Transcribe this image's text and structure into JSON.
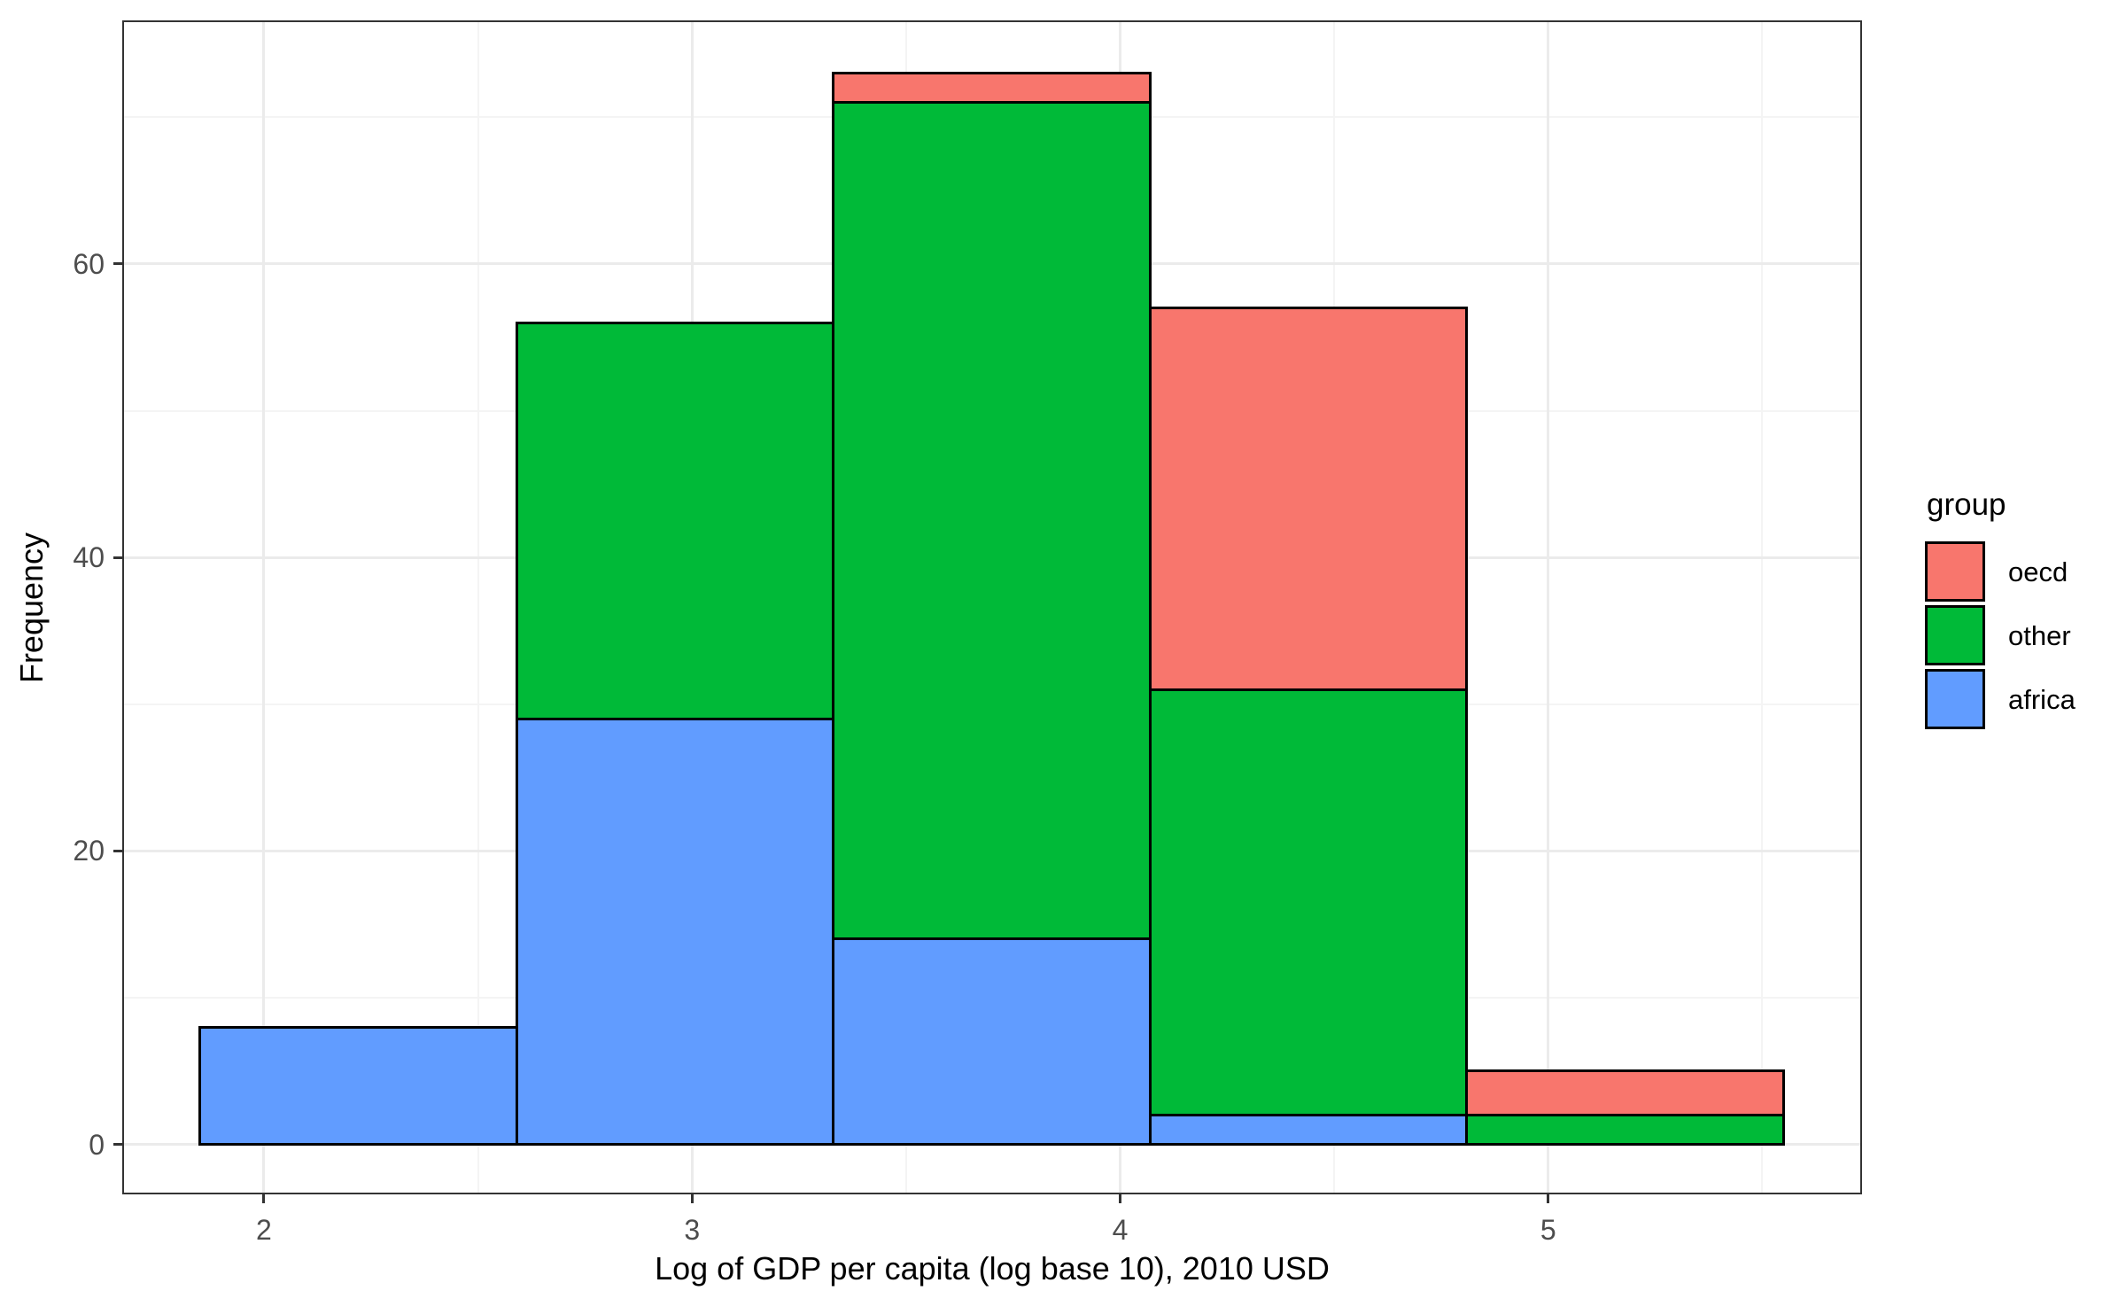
{
  "legend": {
    "title": "group",
    "items": [
      {
        "label": "oecd",
        "color": "#F8766D"
      },
      {
        "label": "other",
        "color": "#00BA38"
      },
      {
        "label": "africa",
        "color": "#619CFF"
      }
    ]
  },
  "axes": {
    "x": {
      "major_ticks": [
        2,
        3,
        4,
        5
      ],
      "tick_labels": [
        "2",
        "3",
        "4",
        "5"
      ],
      "minor_gridlines": [
        2.5,
        3.5,
        4.5,
        5.5
      ]
    },
    "y": {
      "major_ticks": [
        0,
        20,
        40,
        60
      ],
      "tick_labels": [
        "0",
        "20",
        "40",
        "60"
      ],
      "minor_gridlines": [
        10,
        30,
        50,
        70
      ]
    }
  },
  "chart_data": {
    "type": "bar",
    "subtype": "stacked-histogram",
    "title": "",
    "xlabel": "Log of GDP per capita (log base 10), 2010 USD",
    "ylabel": "Frequency",
    "bin_edges": [
      1.85,
      2.59,
      3.33,
      4.07,
      4.81,
      5.55
    ],
    "stack_order_bottom_to_top": [
      "africa",
      "other",
      "oecd"
    ],
    "series": [
      {
        "name": "africa",
        "color": "#619CFF",
        "values": [
          8,
          29,
          14,
          2,
          0
        ]
      },
      {
        "name": "other",
        "color": "#00BA38",
        "values": [
          0,
          27,
          57,
          29,
          2
        ]
      },
      {
        "name": "oecd",
        "color": "#F8766D",
        "values": [
          0,
          0,
          2,
          26,
          3
        ]
      }
    ],
    "bin_totals": [
      8,
      56,
      73,
      57,
      5
    ],
    "xlim": [
      1.669,
      5.733
    ],
    "ylim": [
      -3.4,
      76.6
    ],
    "grid": true,
    "legend_position": "right",
    "bar_border_color": "#000000"
  },
  "style": {
    "background": "#FFFFFF",
    "panel_border": "#333333",
    "major_gridline": "#EBEBEB",
    "minor_gridline": "#F4F4F4",
    "tick_color": "#333333",
    "tick_label_color": "#4D4D4D",
    "text_color": "#000000"
  }
}
